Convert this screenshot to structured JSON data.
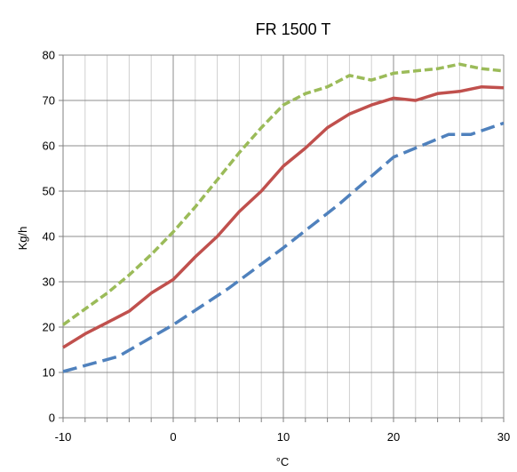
{
  "chart_data": {
    "type": "line",
    "title": "FR 1500 T",
    "xlabel": "°C",
    "ylabel": "Kg/h",
    "xlim": [
      -10,
      30
    ],
    "ylim": [
      0,
      80
    ],
    "x_ticks": [
      "-10",
      "0",
      "10",
      "20",
      "30"
    ],
    "y_ticks": [
      "0",
      "10",
      "20",
      "30",
      "40",
      "50",
      "60",
      "70",
      "80"
    ],
    "grid": true,
    "legend": "none",
    "series": [
      {
        "color": "#9BBB59",
        "style": "dashed",
        "x": [
          -10,
          -8,
          -6,
          -4,
          -2,
          0,
          2,
          4,
          6,
          8,
          10,
          12,
          14,
          16,
          18,
          20,
          22,
          24,
          26,
          28,
          30
        ],
        "y": [
          20.5,
          24,
          27.5,
          31.5,
          36,
          41,
          46.5,
          52.5,
          58.5,
          64,
          69,
          71.5,
          73,
          75.5,
          74.5,
          76,
          76.5,
          77,
          78,
          77,
          76.5
        ]
      },
      {
        "color": "#C0504D",
        "style": "solid",
        "x": [
          -10,
          -8,
          -6,
          -4,
          -2,
          0,
          2,
          4,
          6,
          8,
          10,
          12,
          14,
          16,
          18,
          20,
          22,
          24,
          26,
          28,
          30
        ],
        "y": [
          15.5,
          18.5,
          21,
          23.5,
          27.5,
          30.5,
          35.5,
          40,
          45.5,
          50,
          55.5,
          59.5,
          64,
          67,
          69,
          70.5,
          70,
          71.5,
          72,
          73,
          72.8
        ]
      },
      {
        "color": "#4F81BD",
        "style": "dashed",
        "x": [
          -10,
          -5,
          0,
          5,
          10,
          15,
          20,
          25,
          27,
          30
        ],
        "y": [
          10.2,
          13.5,
          20.5,
          28.5,
          37.5,
          47,
          57.5,
          62.5,
          62.5,
          65
        ]
      }
    ]
  }
}
